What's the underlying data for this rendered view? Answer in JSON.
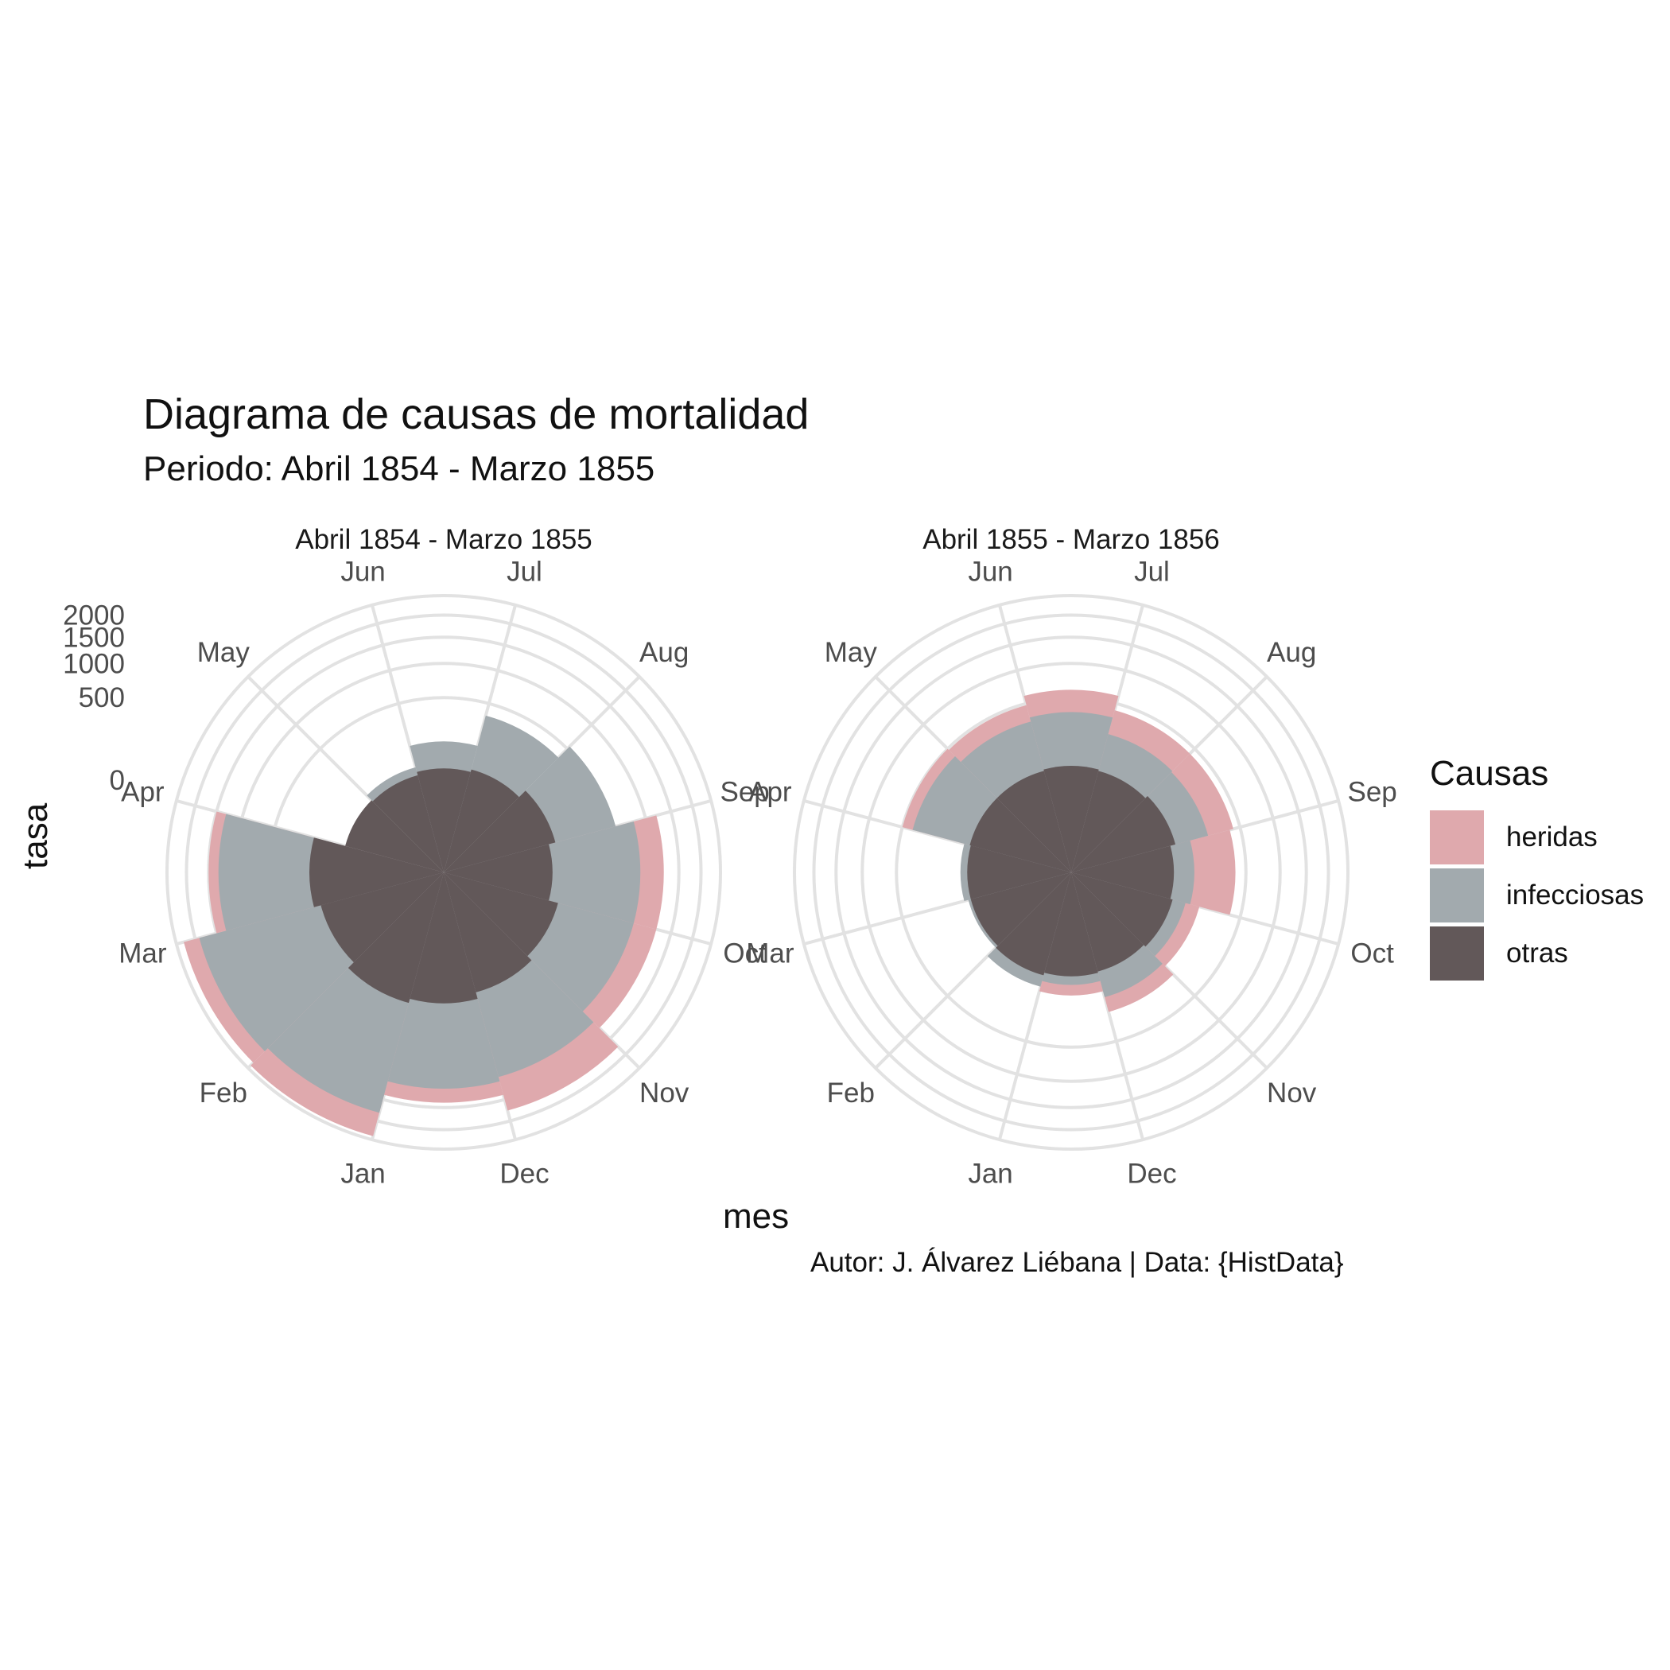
{
  "title": "Diagrama de causas de mortalidad",
  "subtitle": "Periodo: Abril 1854 - Marzo 1855",
  "caption": "Autor: J. Álvarez Liébana | Data: {HistData}",
  "xlabel": "mes",
  "ylabel": "tasa",
  "legend": {
    "title": "Causas",
    "items": [
      {
        "label": "heridas",
        "color": "#dfa9ad"
      },
      {
        "label": "infecciosas",
        "color": "#a2aaae"
      },
      {
        "label": "otras",
        "color": "#625859"
      }
    ]
  },
  "chart_data": [
    {
      "type": "rose",
      "title": "Abril 1854 - Marzo 1855",
      "r_scale": "sqrt",
      "r_ticks": [
        0,
        500,
        1000,
        1500,
        2000
      ],
      "r_max": 2500,
      "categories": [
        "Apr",
        "May",
        "Jun",
        "Jul",
        "Aug",
        "Sep",
        "Oct",
        "Nov",
        "Dec",
        "Jan",
        "Feb",
        "Mar"
      ],
      "series": [
        {
          "name": "heridas",
          "values": [
            0,
            0,
            0,
            0,
            0,
            1200,
            1200,
            1750,
            1400,
            2400,
            2300,
            1500
          ]
        },
        {
          "name": "infecciosas",
          "values": [
            0,
            20,
            110,
            360,
            540,
            800,
            800,
            1050,
            1130,
            1800,
            1900,
            1300
          ]
        },
        {
          "name": "otras",
          "values": [
            7,
            5,
            10,
            15,
            40,
            20,
            50,
            75,
            110,
            135,
            90,
            130
          ]
        }
      ]
    },
    {
      "type": "rose",
      "title": "Abril 1855 - Marzo 1856",
      "r_scale": "sqrt",
      "r_ticks": [
        0,
        500,
        1000,
        1500,
        2000
      ],
      "r_max": 2500,
      "categories": [
        "Apr",
        "May",
        "Jun",
        "Jul",
        "Aug",
        "Sep",
        "Oct",
        "Nov",
        "Dec",
        "Jan",
        "Feb",
        "Mar"
      ],
      "series": [
        {
          "name": "heridas",
          "values": [
            500,
            480,
            600,
            420,
            420,
            380,
            120,
            200,
            70,
            10,
            0,
            0
          ]
        },
        {
          "name": "infecciosas",
          "values": [
            380,
            300,
            340,
            190,
            180,
            70,
            50,
            100,
            30,
            50,
            15,
            25
          ]
        },
        {
          "name": "otras",
          "values": [
            12,
            12,
            15,
            12,
            18,
            8,
            12,
            8,
            10,
            15,
            10,
            10
          ]
        }
      ]
    }
  ]
}
